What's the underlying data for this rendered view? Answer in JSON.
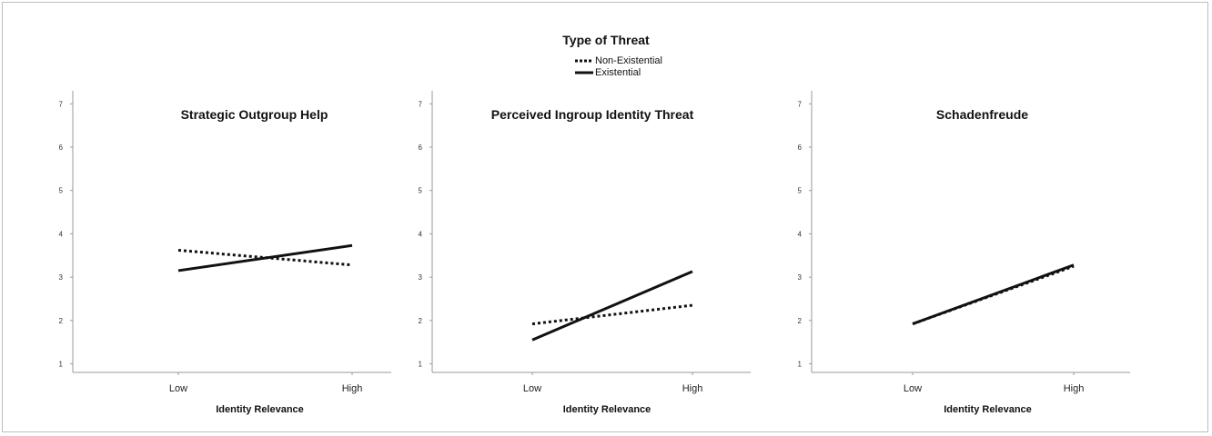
{
  "legend": {
    "title": "Type of Threat",
    "items": [
      {
        "label": "Non-Existential",
        "style": "dotted"
      },
      {
        "label": "Existential",
        "style": "solid"
      }
    ]
  },
  "chart_data": [
    {
      "type": "line",
      "title": "Strategic Outgroup Help",
      "xlabel": "Identity Relevance",
      "ylabel": "",
      "categories": [
        "Low",
        "High"
      ],
      "ylim": [
        0.8,
        7.3
      ],
      "yticks": [
        1,
        2,
        3,
        4,
        5,
        6,
        7
      ],
      "series": [
        {
          "name": "Non-Existential",
          "style": "dotted",
          "values": [
            3.62,
            3.28
          ]
        },
        {
          "name": "Existential",
          "style": "solid",
          "values": [
            3.15,
            3.73
          ]
        }
      ]
    },
    {
      "type": "line",
      "title": "Perceived Ingroup Identity Threat",
      "xlabel": "Identity Relevance",
      "ylabel": "",
      "categories": [
        "Low",
        "High"
      ],
      "ylim": [
        0.8,
        7.3
      ],
      "yticks": [
        1,
        2,
        3,
        4,
        5,
        6,
        7
      ],
      "series": [
        {
          "name": "Non-Existential",
          "style": "dotted",
          "values": [
            1.92,
            2.35
          ]
        },
        {
          "name": "Existential",
          "style": "solid",
          "values": [
            1.55,
            3.13
          ]
        }
      ]
    },
    {
      "type": "line",
      "title": "Schadenfreude",
      "xlabel": "Identity Relevance",
      "ylabel": "",
      "categories": [
        "Low",
        "High"
      ],
      "ylim": [
        0.8,
        7.3
      ],
      "yticks": [
        1,
        2,
        3,
        4,
        5,
        6,
        7
      ],
      "series": [
        {
          "name": "Non-Existential",
          "style": "dotted",
          "values": [
            1.92,
            3.25
          ]
        },
        {
          "name": "Existential",
          "style": "solid",
          "values": [
            1.92,
            3.28
          ]
        }
      ]
    }
  ]
}
